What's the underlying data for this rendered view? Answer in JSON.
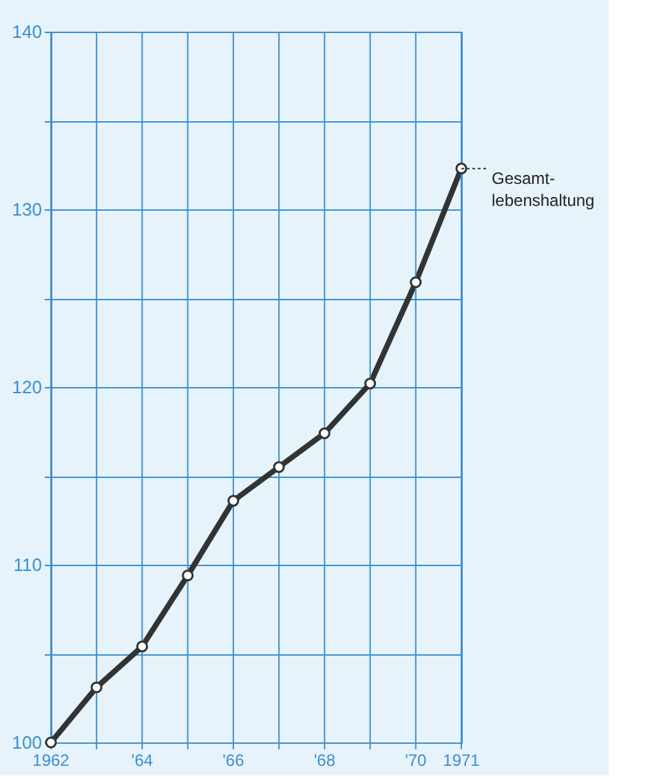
{
  "chart_data": {
    "type": "line",
    "x": [
      1962,
      1963,
      1964,
      1965,
      1966,
      1967,
      1968,
      1969,
      1970,
      1971
    ],
    "values": [
      100,
      103.1,
      105.4,
      109.4,
      113.6,
      115.5,
      117.4,
      120.2,
      125.9,
      132.3
    ],
    "color": "#333333",
    "marker": "circle",
    "line_style": "solid",
    "xlim": [
      1962,
      1971
    ],
    "xticks": [
      1962,
      {
        "value": 1963,
        "label": null
      },
      {
        "value": 1964,
        "label": "'64"
      },
      {
        "value": 1965,
        "label": null
      },
      {
        "value": 1966,
        "label": "'66"
      },
      {
        "value": 1967,
        "label": null
      },
      {
        "value": 1968,
        "label": "'68"
      },
      {
        "value": 1969,
        "label": null
      },
      {
        "value": 1970,
        "label": "'70"
      },
      1971
    ],
    "ylim": [
      100,
      140
    ],
    "yticks": [
      100,
      {
        "value": 105,
        "label": null
      },
      110,
      {
        "value": 115,
        "label": null
      },
      120,
      {
        "value": 125,
        "label": null
      },
      130,
      {
        "value": 135,
        "label": null
      },
      140
    ],
    "grid": true,
    "annotations": [
      {
        "text": "Gesamt-\nlebenshaltung",
        "x": 1971,
        "y": 132.3
      }
    ]
  }
}
